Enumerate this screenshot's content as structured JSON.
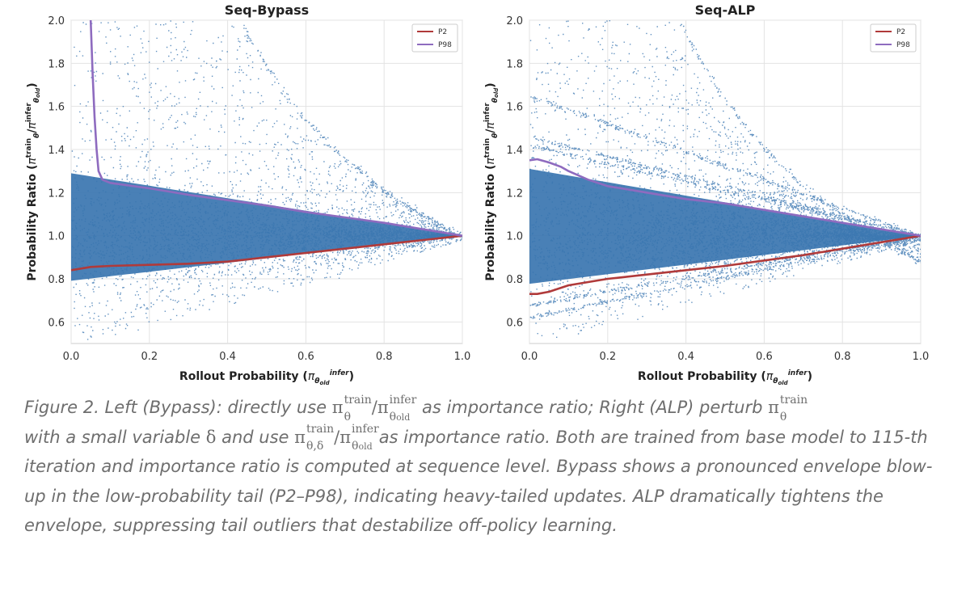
{
  "chart_data": [
    {
      "type": "scatter",
      "title": "Seq-Bypass",
      "xlabel": "Rollout Probability (π_θold^infer)",
      "ylabel": "Probability Ratio (π_θ^train/π_θold^infer)",
      "xlim": [
        0.0,
        1.0
      ],
      "ylim": [
        0.5,
        2.0
      ],
      "xticks": [
        "0.0",
        "0.2",
        "0.4",
        "0.6",
        "0.8",
        "1.0"
      ],
      "yticks": [
        "0.6",
        "0.8",
        "1.0",
        "1.2",
        "1.4",
        "1.6",
        "1.8",
        "2.0"
      ],
      "grid": true,
      "legend_position": "top-right",
      "series": [
        {
          "name": "P2",
          "color": "#b03a3a",
          "x": [
            0.0,
            0.05,
            0.1,
            0.2,
            0.3,
            0.4,
            0.5,
            0.6,
            0.7,
            0.8,
            0.9,
            1.0
          ],
          "y": [
            0.84,
            0.855,
            0.86,
            0.865,
            0.87,
            0.88,
            0.9,
            0.92,
            0.94,
            0.96,
            0.98,
            1.0
          ]
        },
        {
          "name": "P98",
          "color": "#8e6bbf",
          "x": [
            0.05,
            0.055,
            0.06,
            0.065,
            0.07,
            0.08,
            0.1,
            0.2,
            0.3,
            0.4,
            0.5,
            0.6,
            0.7,
            0.8,
            0.9,
            1.0
          ],
          "y": [
            2.0,
            1.75,
            1.55,
            1.4,
            1.3,
            1.26,
            1.245,
            1.22,
            1.19,
            1.165,
            1.14,
            1.11,
            1.085,
            1.06,
            1.03,
            1.0
          ]
        }
      ]
    },
    {
      "type": "scatter",
      "title": "Seq-ALP",
      "xlabel": "Rollout Probability (π_θold^infer)",
      "ylabel": "Probability Ratio (π_θ^train/π_θold^infer)",
      "xlim": [
        0.0,
        1.0
      ],
      "ylim": [
        0.5,
        2.0
      ],
      "xticks": [
        "0.0",
        "0.2",
        "0.4",
        "0.6",
        "0.8",
        "1.0"
      ],
      "yticks": [
        "0.6",
        "0.8",
        "1.0",
        "1.2",
        "1.4",
        "1.6",
        "1.8",
        "2.0"
      ],
      "grid": true,
      "legend_position": "top-right",
      "series": [
        {
          "name": "P2",
          "color": "#b03a3a",
          "x": [
            0.0,
            0.02,
            0.05,
            0.1,
            0.2,
            0.3,
            0.4,
            0.5,
            0.6,
            0.7,
            0.8,
            0.9,
            1.0
          ],
          "y": [
            0.73,
            0.73,
            0.74,
            0.77,
            0.8,
            0.82,
            0.84,
            0.86,
            0.885,
            0.91,
            0.94,
            0.97,
            1.0
          ]
        },
        {
          "name": "P98",
          "color": "#8e6bbf",
          "x": [
            0.0,
            0.02,
            0.05,
            0.08,
            0.1,
            0.15,
            0.2,
            0.3,
            0.4,
            0.5,
            0.6,
            0.7,
            0.8,
            0.9,
            1.0
          ],
          "y": [
            1.35,
            1.355,
            1.34,
            1.32,
            1.3,
            1.26,
            1.23,
            1.2,
            1.17,
            1.15,
            1.12,
            1.09,
            1.06,
            1.03,
            1.0
          ]
        }
      ]
    }
  ],
  "caption": {
    "prefix": "Figure 2. Left (Bypass): directly use ",
    "pi": "π",
    "slash": "/",
    "theta": "θ",
    "theta_delta": "θ,δ",
    "theta_old_base": "θ",
    "old": "old",
    "train": "train",
    "infer": "infer",
    "mid1": " as importance ratio; Right (ALP) perturb ",
    "line2_a": "with a small variable ",
    "delta": "δ",
    "line2_b": " and use ",
    "line2_c": "as importance ratio. Both are trained from base model to 115-th iteration and importance ratio is computed at sequence level. Bypass shows a pronounced envelope blow-up in the low-probability tail (P2–P98), indicating heavy-tailed updates. ALP dramatically tightens the envelope, suppressing tail outliers that destabilize off-policy learning."
  },
  "colors": {
    "scatter": "#3a75b0",
    "grid": "#e3e3e3",
    "frame": "#cccccc",
    "text": "#222222"
  }
}
